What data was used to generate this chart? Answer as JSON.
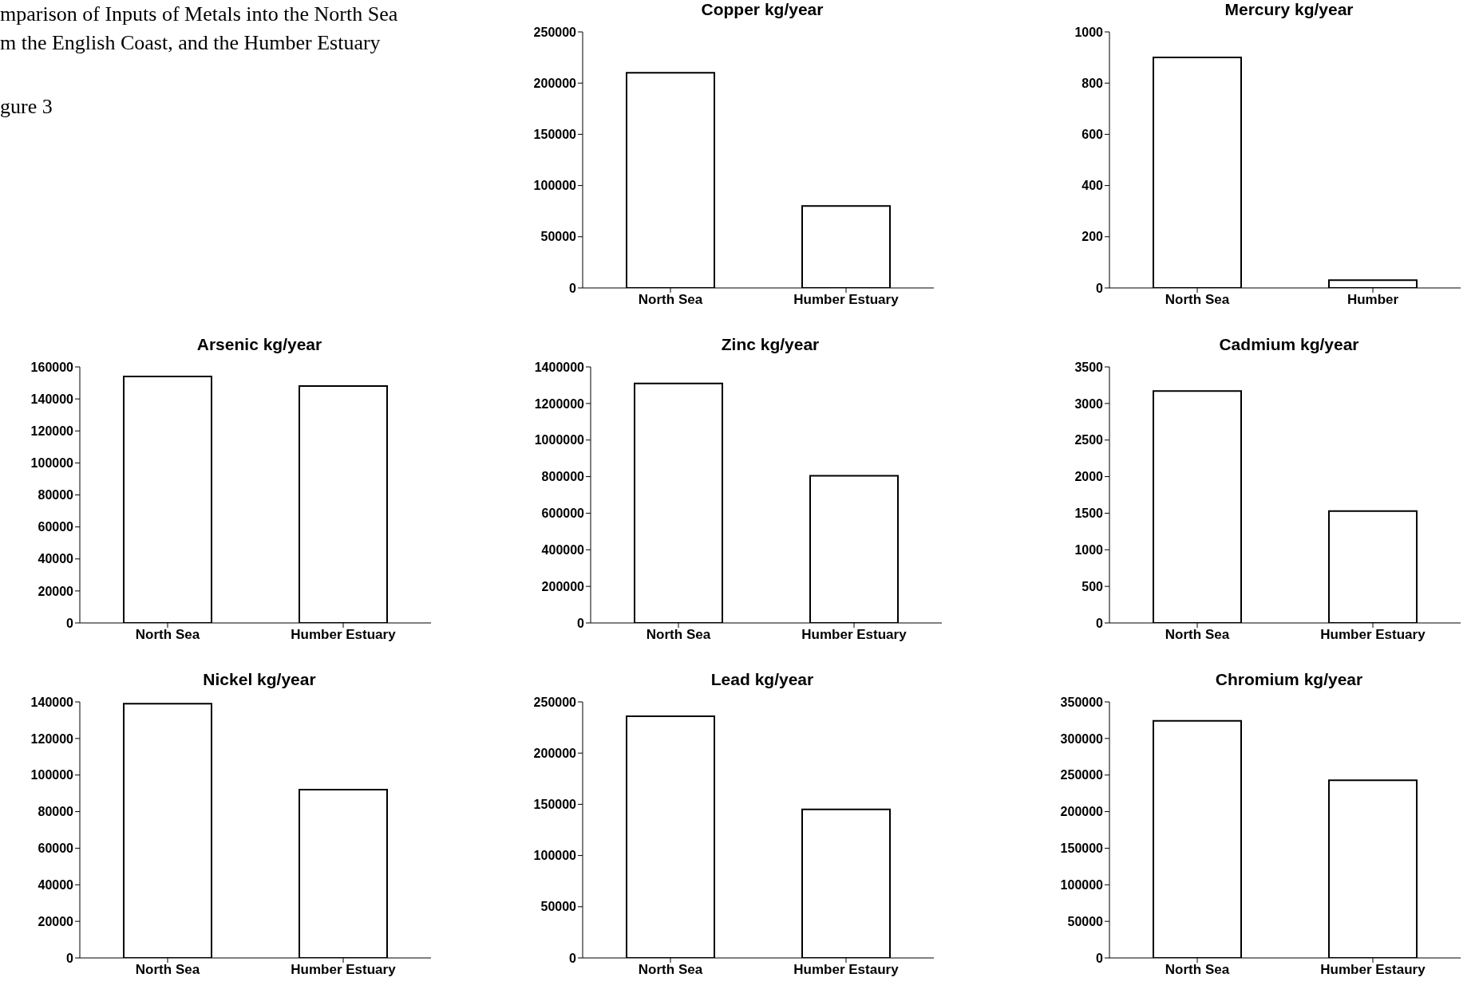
{
  "chart_data": [
    {
      "type": "bar",
      "title": "Copper kg/year",
      "annotations": [
        "mparison of Inputs of Metals into the North Sea",
        "m the English Coast, and the Humber Estuary",
        "gure 3"
      ],
      "categories": [
        "North Sea",
        "Humber Estuary"
      ],
      "values": [
        210000,
        80000
      ],
      "color": "#ffffff",
      "ylim": [
        0,
        250000
      ],
      "yticks": [
        0,
        50000,
        100000,
        150000,
        200000,
        250000
      ],
      "grid": false
    },
    {
      "type": "bar",
      "title": "Mercury kg/year",
      "categories": [
        "North Sea",
        "Humber"
      ],
      "values": [
        900,
        30
      ],
      "color": "#ffffff",
      "ylim": [
        0,
        1000
      ],
      "yticks": [
        0,
        200,
        400,
        600,
        800,
        1000
      ],
      "grid": false
    },
    {
      "type": "bar",
      "title": "Arsenic kg/year",
      "categories": [
        "North Sea",
        "Humber Estuary"
      ],
      "values": [
        154000,
        148000
      ],
      "color": "#ffffff",
      "ylim": [
        0,
        160000
      ],
      "yticks": [
        0,
        20000,
        40000,
        60000,
        80000,
        100000,
        120000,
        140000,
        160000
      ],
      "grid": false
    },
    {
      "type": "bar",
      "title": "Zinc kg/year",
      "categories": [
        "North Sea",
        "Humber Estuary"
      ],
      "values": [
        1310000,
        805000
      ],
      "color": "#ffffff",
      "ylim": [
        0,
        1400000
      ],
      "yticks": [
        0,
        200000,
        400000,
        600000,
        800000,
        1000000,
        1200000,
        1400000
      ],
      "grid": false
    },
    {
      "type": "bar",
      "title": "Cadmium kg/year",
      "categories": [
        "North Sea",
        "Humber Estuary"
      ],
      "values": [
        3170,
        1530
      ],
      "color": "#ffffff",
      "ylim": [
        0,
        3500
      ],
      "yticks": [
        0,
        500,
        1000,
        1500,
        2000,
        2500,
        3000,
        3500
      ],
      "grid": false
    },
    {
      "type": "bar",
      "title": "Nickel kg/year",
      "categories": [
        "North Sea",
        "Humber Estuary"
      ],
      "values": [
        139000,
        92000
      ],
      "color": "#ffffff",
      "ylim": [
        0,
        140000
      ],
      "yticks": [
        0,
        20000,
        40000,
        60000,
        80000,
        100000,
        120000,
        140000
      ],
      "grid": false
    },
    {
      "type": "bar",
      "title": "Lead kg/year",
      "categories": [
        "North Sea",
        "Humber Estaury"
      ],
      "values": [
        236000,
        145000
      ],
      "color": "#ffffff",
      "ylim": [
        0,
        250000
      ],
      "yticks": [
        0,
        50000,
        100000,
        150000,
        200000,
        250000
      ],
      "grid": false
    },
    {
      "type": "bar",
      "title": "Chromium kg/year",
      "categories": [
        "North Sea",
        "Humber Estaury"
      ],
      "values": [
        324000,
        243000
      ],
      "color": "#ffffff",
      "ylim": [
        0,
        350000
      ],
      "yticks": [
        0,
        50000,
        100000,
        150000,
        200000,
        250000,
        300000,
        350000
      ],
      "grid": false
    }
  ]
}
